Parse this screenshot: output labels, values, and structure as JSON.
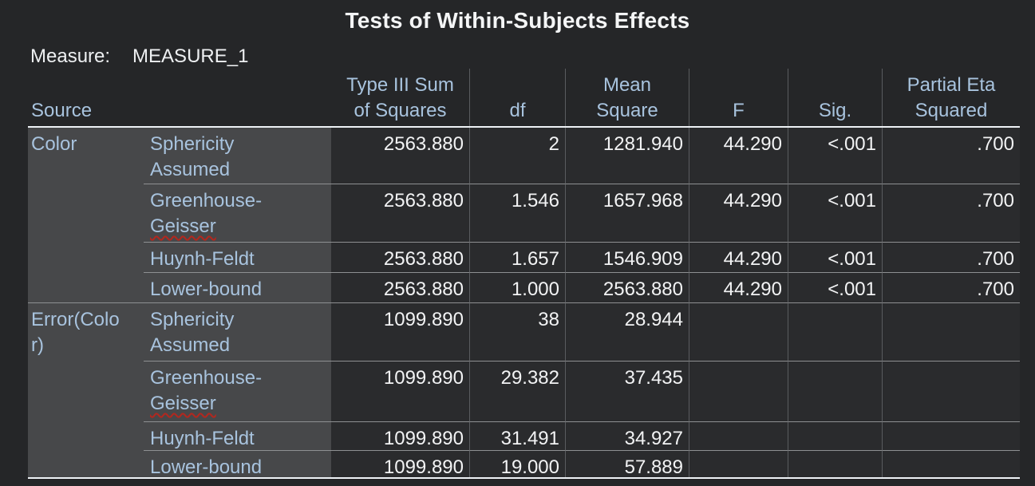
{
  "title": "Tests of Within-Subjects Effects",
  "measure": {
    "label": "Measure:",
    "value": "MEASURE_1"
  },
  "table": {
    "headers": {
      "source": "Source",
      "ss": "Type III Sum\nof Squares",
      "df": "df",
      "ms": "Mean\nSquare",
      "f": "F",
      "sig": "Sig.",
      "pes": "Partial Eta\nSquared"
    },
    "rows": [
      {
        "source": "Color",
        "method": "Sphericity\nAssumed",
        "ss": "2563.880",
        "df": "2",
        "ms": "1281.940",
        "f": "44.290",
        "sig": "<.001",
        "pes": ".700"
      },
      {
        "method_line1": "Greenhouse-",
        "method_line2": "Geisser",
        "misspelled": true,
        "ss": "2563.880",
        "df": "1.546",
        "ms": "1657.968",
        "f": "44.290",
        "sig": "<.001",
        "pes": ".700"
      },
      {
        "method": "Huynh-Feldt",
        "ss": "2563.880",
        "df": "1.657",
        "ms": "1546.909",
        "f": "44.290",
        "sig": "<.001",
        "pes": ".700"
      },
      {
        "method": "Lower-bound",
        "ss": "2563.880",
        "df": "1.000",
        "ms": "2563.880",
        "f": "44.290",
        "sig": "<.001",
        "pes": ".700"
      },
      {
        "source": "Error(Colo\nr)",
        "block_start": true,
        "method": "Sphericity\nAssumed",
        "ss": "1099.890",
        "df": "38",
        "ms": "28.944",
        "f": "",
        "sig": "",
        "pes": ""
      },
      {
        "method_line1": "Greenhouse-",
        "method_line2": "Geisser",
        "misspelled": true,
        "ss": "1099.890",
        "df": "29.382",
        "ms": "37.435",
        "f": "",
        "sig": "",
        "pes": ""
      },
      {
        "method": "Huynh-Feldt",
        "ss": "1099.890",
        "df": "31.491",
        "ms": "34.927",
        "f": "",
        "sig": "",
        "pes": ""
      },
      {
        "method": "Lower-bound",
        "ss": "1099.890",
        "df": "19.000",
        "ms": "57.889",
        "f": "",
        "sig": "",
        "pes": ""
      }
    ],
    "colors": {
      "header_text": "#a8c3de",
      "value_text": "#f2f3f4",
      "row_header_bg": "#47484a",
      "cell_bg": "#2a2b2d",
      "page_bg": "#252628",
      "grid_line": "#5a5c5f",
      "row_separator": "#8e9092",
      "strong_border": "#eef2f6",
      "spellcheck_underline": "#b3271e"
    }
  }
}
